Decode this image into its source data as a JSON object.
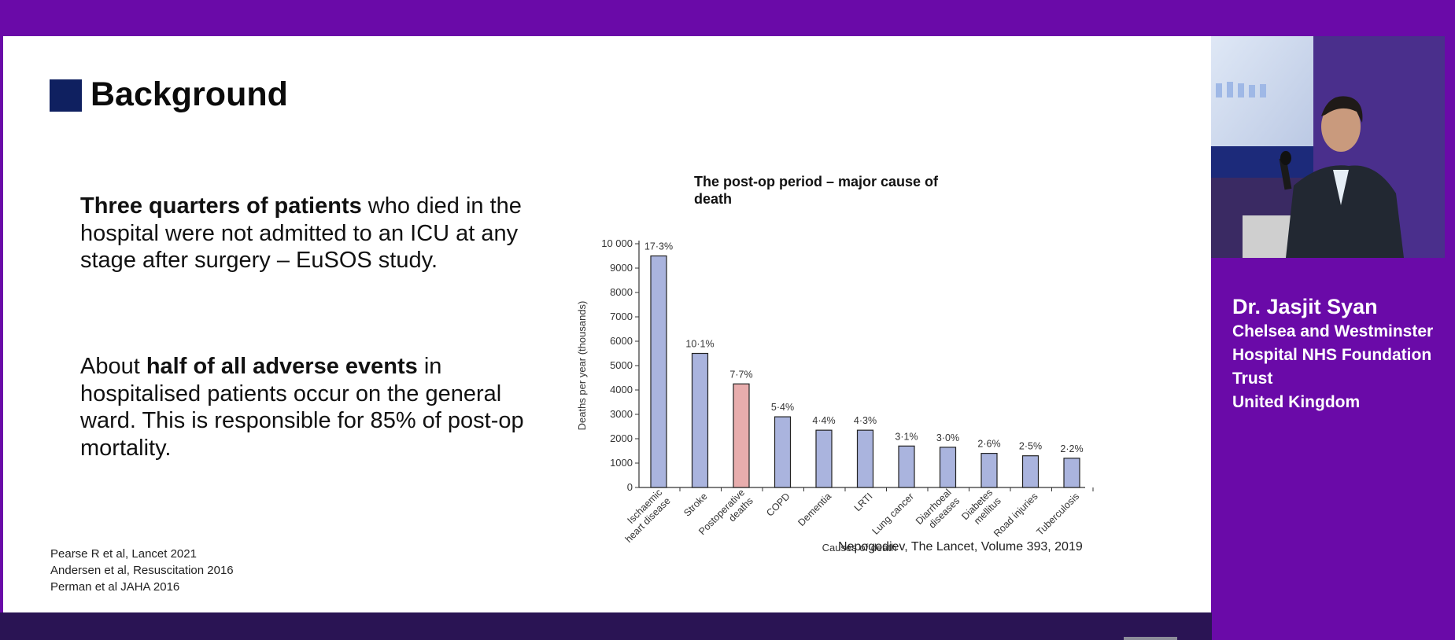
{
  "slide": {
    "title": "Background",
    "paragraph1": {
      "bold": "Three quarters of patients",
      "rest": " who died in the hospital were not admitted to an ICU at any stage after surgery – EuSOS study."
    },
    "paragraph2": {
      "pre": "About ",
      "bold": "half of all adverse events",
      "rest": " in hospitalised patients occur on the general ward. This is responsible for 85% of post-op mortality."
    },
    "references": [
      "Pearse R et al, Lancet 2021",
      "Andersen et al, Resuscitation 2016",
      "Perman et al JAHA 2016"
    ],
    "citation": "Nepogodiev, The Lancet, Volume 393, 2019"
  },
  "speaker": {
    "name": "Dr. Jasjit Syan",
    "affiliation": [
      "Chelsea and Westminster",
      "Hospital NHS Foundation",
      "Trust",
      "United Kingdom"
    ]
  },
  "colors": {
    "background": "#6a0aa8",
    "bar": "#aab4de",
    "highlight_bar": "#e8adad",
    "title_square": "#0f2060"
  },
  "chart_data": {
    "type": "bar",
    "title": "The post-op period – major cause of death",
    "xlabel": "Causes of death",
    "ylabel": "Deaths per year (thousands)",
    "ylim": [
      0,
      10000
    ],
    "yticks": [
      "0",
      "1000",
      "2000",
      "3000",
      "4000",
      "5000",
      "6000",
      "7000",
      "8000",
      "9000",
      "10 000"
    ],
    "categories": [
      [
        "Ischaemic",
        "heart disease"
      ],
      [
        "Stroke"
      ],
      [
        "Postoperative",
        "deaths"
      ],
      [
        "COPD"
      ],
      [
        "Dementia"
      ],
      [
        "LRTI"
      ],
      [
        "Lung cancer"
      ],
      [
        "Diarrhoeal",
        "diseases"
      ],
      [
        "Diabetes",
        "mellitus"
      ],
      [
        "Road injuries"
      ],
      [
        "Tuberculosis"
      ]
    ],
    "values": [
      9500,
      5500,
      4250,
      2900,
      2350,
      2350,
      1700,
      1650,
      1400,
      1300,
      1200
    ],
    "labels": [
      "17·3%",
      "10·1%",
      "7·7%",
      "5·4%",
      "4·4%",
      "4·3%",
      "3·1%",
      "3·0%",
      "2·6%",
      "2·5%",
      "2·2%"
    ],
    "highlight_index": 2,
    "grid": false
  }
}
